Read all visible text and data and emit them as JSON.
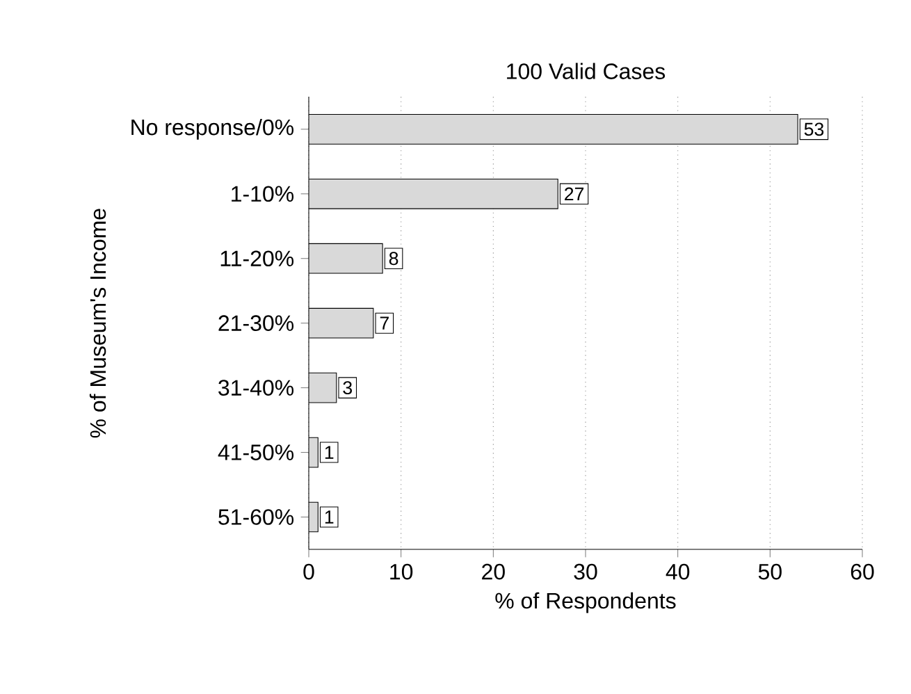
{
  "chart_data": {
    "type": "bar",
    "orientation": "horizontal",
    "title": "100 Valid Cases",
    "xlabel": "% of Respondents",
    "ylabel": "% of Museum's Income",
    "categories": [
      "No response/0%",
      "1-10%",
      "11-20%",
      "21-30%",
      "31-40%",
      "41-50%",
      "51-60%"
    ],
    "values": [
      53,
      27,
      8,
      7,
      3,
      1,
      1
    ],
    "color": "#d9d9d9",
    "xlim": [
      0,
      60
    ],
    "xticks": [
      0,
      10,
      20,
      30,
      40,
      50,
      60
    ],
    "grid": "x",
    "data_labels": true
  }
}
